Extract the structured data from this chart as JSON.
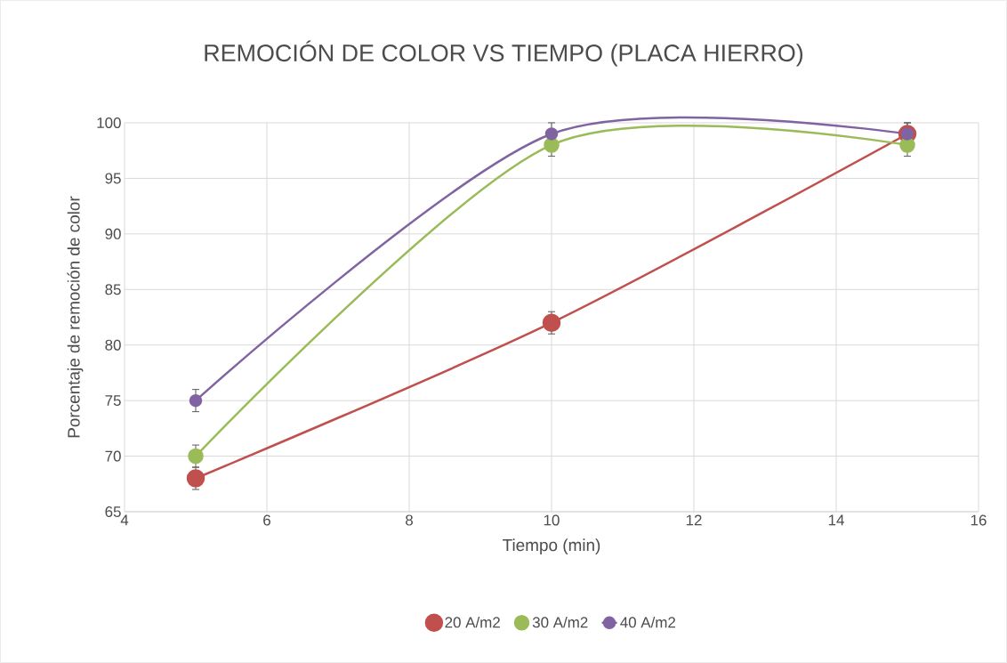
{
  "chart_data": {
    "type": "line",
    "title": "REMOCIÓN DE COLOR VS TIEMPO (PLACA HIERRO)",
    "xlabel": "Tiempo (min)",
    "ylabel": "Porcentaje de remoción de color",
    "x": [
      5,
      10,
      15
    ],
    "series": [
      {
        "name": "20 A/m2",
        "color": "#c0504d",
        "values": [
          68,
          82,
          99
        ],
        "errors": [
          1,
          1,
          1
        ]
      },
      {
        "name": "30 A/m2",
        "color": "#9bbb59",
        "values": [
          70,
          98,
          98
        ],
        "errors": [
          1,
          1,
          1
        ]
      },
      {
        "name": "40 A/m2",
        "color": "#8064a2",
        "values": [
          75,
          99,
          99
        ],
        "errors": [
          1,
          1,
          1
        ]
      }
    ],
    "xlim": [
      4,
      16
    ],
    "xticks": [
      4,
      6,
      8,
      10,
      12,
      14,
      16
    ],
    "ylim": [
      65,
      100
    ],
    "yticks": [
      65,
      70,
      75,
      80,
      85,
      90,
      95,
      100
    ],
    "grid": true,
    "legend": "bottom",
    "marker": "circle",
    "line_style": "solid"
  }
}
